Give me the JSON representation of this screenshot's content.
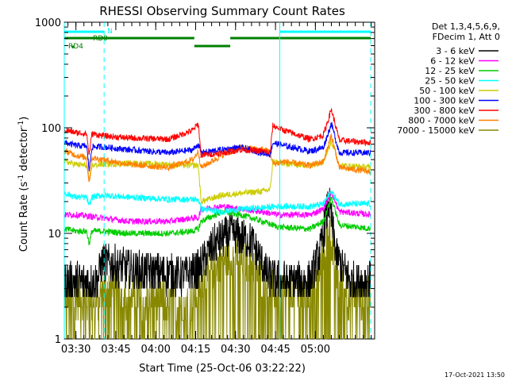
{
  "chart_data": {
    "type": "line",
    "title": "RHESSI Observing Summary Count Rates",
    "xlabel": "Start Time (25-Oct-06 03:22:22)",
    "ylabel_main": "Count Rate (s",
    "ylabel_sup1": "-1",
    "ylabel_mid": " detector",
    "ylabel_sup2": "-1",
    "ylabel_end": ")",
    "yscale": "log",
    "ylim": [
      1,
      1000
    ],
    "xlim_minutes": [
      -4.37,
      112.27
    ],
    "x_ticks": [
      {
        "label": "03:30",
        "minutes": 0
      },
      {
        "label": "03:45",
        "minutes": 15
      },
      {
        "label": "04:00",
        "minutes": 30
      },
      {
        "label": "04:15",
        "minutes": 45
      },
      {
        "label": "04:30",
        "minutes": 60
      },
      {
        "label": "04:45",
        "minutes": 75
      },
      {
        "label": "05:00",
        "minutes": 90
      }
    ],
    "y_ticks": [
      {
        "label": "1",
        "value": 1
      },
      {
        "label": "10",
        "value": 10
      },
      {
        "label": "100",
        "value": 100
      },
      {
        "label": "1000",
        "value": 1000
      }
    ],
    "legend_header": [
      "Det 1,3,4,5,6,9,",
      "FDecim 1, Att 0"
    ],
    "legend_position": "right",
    "series": [
      {
        "name": "3 - 6 keV",
        "color": "#000000",
        "points": [
          [
            -4,
            3.5
          ],
          [
            0,
            3.5
          ],
          [
            8,
            3.5
          ],
          [
            10,
            5.5
          ],
          [
            20,
            4.5
          ],
          [
            40,
            4.0
          ],
          [
            46,
            4.5
          ],
          [
            52,
            8
          ],
          [
            58,
            10
          ],
          [
            66,
            8.5
          ],
          [
            72,
            4
          ],
          [
            78,
            3.5
          ],
          [
            88,
            3.5
          ],
          [
            92,
            7
          ],
          [
            95,
            20
          ],
          [
            98,
            6
          ],
          [
            103,
            3.5
          ],
          [
            112,
            3.5
          ]
        ]
      },
      {
        "name": "6 - 12 keV",
        "color": "#ff00ff",
        "points": [
          [
            -4,
            15
          ],
          [
            0,
            15
          ],
          [
            10,
            14
          ],
          [
            20,
            13
          ],
          [
            35,
            13
          ],
          [
            44,
            14
          ],
          [
            46,
            14
          ],
          [
            47,
            17
          ],
          [
            55,
            18
          ],
          [
            62,
            17
          ],
          [
            70,
            16
          ],
          [
            76,
            15
          ],
          [
            88,
            15
          ],
          [
            93,
            17
          ],
          [
            96,
            25
          ],
          [
            99,
            16
          ],
          [
            112,
            15
          ]
        ]
      },
      {
        "name": "12 - 25 keV",
        "color": "#00cc00",
        "points": [
          [
            -4,
            11
          ],
          [
            0,
            10.5
          ],
          [
            4,
            10.5
          ],
          [
            5,
            8
          ],
          [
            6,
            10.5
          ],
          [
            10,
            10.5
          ],
          [
            20,
            10
          ],
          [
            35,
            10
          ],
          [
            44,
            10.5
          ],
          [
            46,
            11
          ],
          [
            47,
            13
          ],
          [
            55,
            16
          ],
          [
            62,
            15
          ],
          [
            70,
            13
          ],
          [
            76,
            11.5
          ],
          [
            88,
            11
          ],
          [
            93,
            13
          ],
          [
            96,
            22
          ],
          [
            99,
            12
          ],
          [
            112,
            11
          ]
        ]
      },
      {
        "name": "25 - 50 keV",
        "color": "#00ffff",
        "points": [
          [
            -4,
            24
          ],
          [
            0,
            22
          ],
          [
            4,
            22
          ],
          [
            5,
            18
          ],
          [
            6,
            22
          ],
          [
            10,
            23
          ],
          [
            20,
            22
          ],
          [
            35,
            21
          ],
          [
            44,
            21
          ],
          [
            46,
            21
          ],
          [
            47,
            17
          ],
          [
            55,
            16
          ],
          [
            62,
            17
          ],
          [
            70,
            17.5
          ],
          [
            76,
            18
          ],
          [
            88,
            18
          ],
          [
            93,
            19
          ],
          [
            96,
            25
          ],
          [
            99,
            19
          ],
          [
            112,
            19
          ]
        ]
      },
      {
        "name": "50 - 100 keV",
        "color": "#cccc00",
        "points": [
          [
            -4,
            48
          ],
          [
            0,
            45
          ],
          [
            4,
            44
          ],
          [
            5,
            30
          ],
          [
            6,
            44
          ],
          [
            10,
            45
          ],
          [
            20,
            46
          ],
          [
            35,
            45
          ],
          [
            44,
            44
          ],
          [
            46,
            44
          ],
          [
            47,
            20
          ],
          [
            55,
            23
          ],
          [
            62,
            24
          ],
          [
            70,
            25
          ],
          [
            73,
            26
          ],
          [
            74,
            48
          ],
          [
            78,
            46
          ],
          [
            88,
            44
          ],
          [
            93,
            48
          ],
          [
            96,
            75
          ],
          [
            99,
            44
          ],
          [
            112,
            42
          ]
        ]
      },
      {
        "name": "100 - 300 keV",
        "color": "#0000ff",
        "points": [
          [
            -4,
            72
          ],
          [
            0,
            68
          ],
          [
            4,
            67
          ],
          [
            5,
            40
          ],
          [
            6,
            66
          ],
          [
            10,
            66
          ],
          [
            20,
            62
          ],
          [
            35,
            58
          ],
          [
            44,
            62
          ],
          [
            46,
            70
          ],
          [
            47,
            58
          ],
          [
            55,
            62
          ],
          [
            62,
            65
          ],
          [
            70,
            58
          ],
          [
            73,
            56
          ],
          [
            74,
            72
          ],
          [
            78,
            68
          ],
          [
            88,
            60
          ],
          [
            93,
            65
          ],
          [
            96,
            110
          ],
          [
            99,
            58
          ],
          [
            112,
            58
          ]
        ]
      },
      {
        "name": "300 - 800 keV",
        "color": "#ff0000",
        "points": [
          [
            -4,
            95
          ],
          [
            0,
            90
          ],
          [
            4,
            88
          ],
          [
            5,
            55
          ],
          [
            6,
            88
          ],
          [
            10,
            84
          ],
          [
            20,
            80
          ],
          [
            35,
            78
          ],
          [
            44,
            95
          ],
          [
            46,
            110
          ],
          [
            47,
            55
          ],
          [
            55,
            58
          ],
          [
            62,
            62
          ],
          [
            70,
            60
          ],
          [
            73,
            58
          ],
          [
            74,
            105
          ],
          [
            78,
            95
          ],
          [
            88,
            78
          ],
          [
            93,
            85
          ],
          [
            96,
            150
          ],
          [
            99,
            76
          ],
          [
            112,
            72
          ]
        ]
      },
      {
        "name": "800 - 7000 keV",
        "color": "#ff8000",
        "points": [
          [
            -4,
            60
          ],
          [
            0,
            55
          ],
          [
            4,
            52
          ],
          [
            5,
            30
          ],
          [
            6,
            52
          ],
          [
            10,
            50
          ],
          [
            20,
            45
          ],
          [
            35,
            42
          ],
          [
            44,
            50
          ],
          [
            46,
            60
          ],
          [
            47,
            42
          ],
          [
            55,
            55
          ],
          [
            62,
            65
          ],
          [
            70,
            62
          ],
          [
            73,
            60
          ],
          [
            74,
            45
          ],
          [
            78,
            48
          ],
          [
            88,
            44
          ],
          [
            93,
            48
          ],
          [
            96,
            85
          ],
          [
            99,
            42
          ],
          [
            112,
            38
          ]
        ]
      },
      {
        "name": "7000 - 15000 keV",
        "color": "#888800",
        "points": [
          [
            -4,
            2.8
          ],
          [
            0,
            2.5
          ],
          [
            8,
            2.2
          ],
          [
            10,
            3.0
          ],
          [
            20,
            2.6
          ],
          [
            35,
            2.3
          ],
          [
            44,
            2.3
          ],
          [
            46,
            3.0
          ],
          [
            52,
            5
          ],
          [
            58,
            6
          ],
          [
            66,
            5.5
          ],
          [
            72,
            3
          ],
          [
            78,
            2.8
          ],
          [
            88,
            2.6
          ],
          [
            92,
            5
          ],
          [
            95,
            12
          ],
          [
            98,
            4
          ],
          [
            103,
            2.5
          ],
          [
            112,
            2.5
          ]
        ]
      }
    ],
    "vlines_cyan_solid_minutes": [
      -4.37,
      76.6
    ],
    "vlines_cyan_dashed_minutes": [
      10.6,
      110.8
    ],
    "flags": [
      {
        "name": "N",
        "color": "#00ffff",
        "y_row": 0,
        "segments": [
          [
            -4.37,
            10.6
          ],
          [
            76.6,
            110.8
          ]
        ]
      },
      {
        "name": "RD0",
        "color": "#008000",
        "y_row": 1,
        "segments": [
          [
            -4.37,
            44.5
          ],
          [
            44.5,
            58.0
          ],
          [
            58.0,
            110.8
          ]
        ],
        "dips": [
          1
        ]
      },
      {
        "name": "RD4",
        "color": "#008000",
        "y_row": 2,
        "segments": [
          [
            -1.5,
            -0.8
          ]
        ]
      }
    ]
  },
  "footer_timestamp": "17-Oct-2021 13:50"
}
